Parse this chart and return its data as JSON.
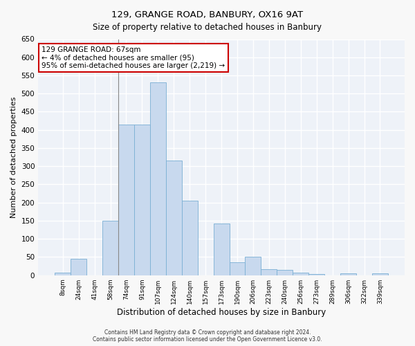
{
  "title": "129, GRANGE ROAD, BANBURY, OX16 9AT",
  "subtitle": "Size of property relative to detached houses in Banbury",
  "xlabel": "Distribution of detached houses by size in Banbury",
  "ylabel": "Number of detached properties",
  "bar_color": "#c8d9ee",
  "bar_edge_color": "#7aafd4",
  "background_color": "#eef2f8",
  "grid_color": "#ffffff",
  "fig_background": "#f8f8f8",
  "ylim": [
    0,
    650
  ],
  "yticks": [
    0,
    50,
    100,
    150,
    200,
    250,
    300,
    350,
    400,
    450,
    500,
    550,
    600,
    650
  ],
  "categories": [
    "8sqm",
    "24sqm",
    "41sqm",
    "58sqm",
    "74sqm",
    "91sqm",
    "107sqm",
    "124sqm",
    "140sqm",
    "157sqm",
    "173sqm",
    "190sqm",
    "206sqm",
    "223sqm",
    "240sqm",
    "256sqm",
    "273sqm",
    "289sqm",
    "306sqm",
    "322sqm",
    "339sqm"
  ],
  "values": [
    8,
    46,
    0,
    150,
    415,
    415,
    530,
    315,
    205,
    0,
    143,
    35,
    50,
    16,
    14,
    8,
    4,
    0,
    6,
    0,
    6
  ],
  "annotation_title": "129 GRANGE ROAD: 67sqm",
  "annotation_line2": "← 4% of detached houses are smaller (95)",
  "annotation_line3": "95% of semi-detached houses are larger (2,219) →",
  "annotation_box_edgecolor": "#cc0000",
  "annotation_box_facecolor": "#ffffff",
  "vline_x_index": 3,
  "vline_color": "#888888",
  "footer_line1": "Contains HM Land Registry data © Crown copyright and database right 2024.",
  "footer_line2": "Contains public sector information licensed under the Open Government Licence v3.0."
}
